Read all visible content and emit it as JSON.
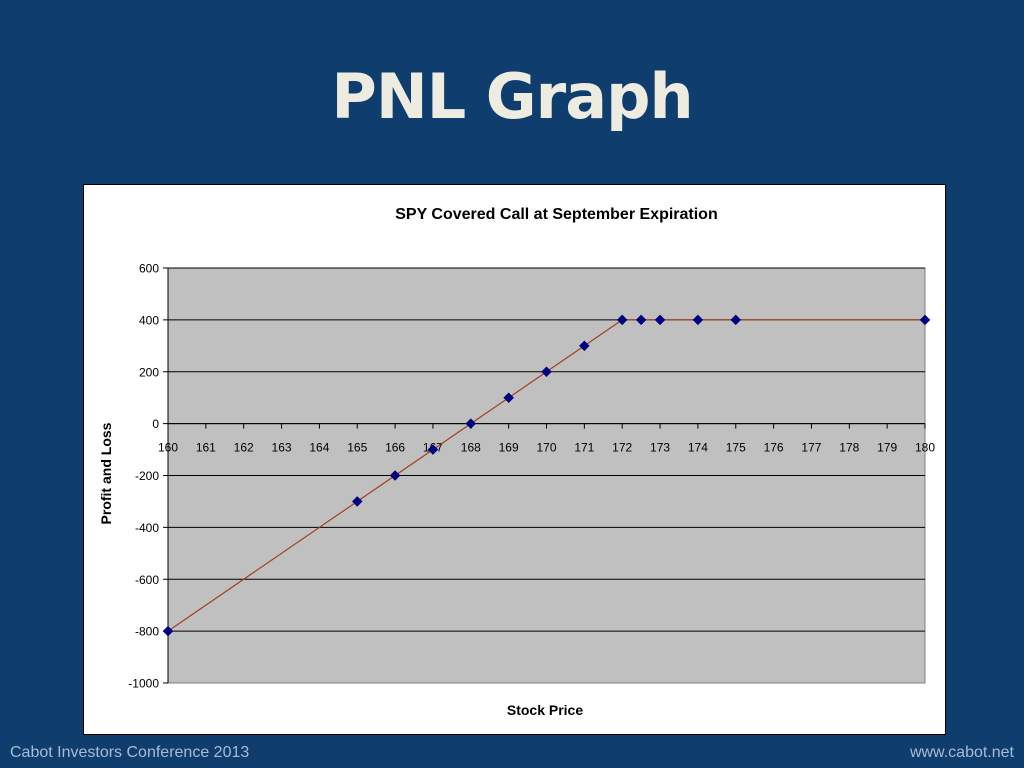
{
  "slide": {
    "title": "PNL Graph",
    "footer_left": "Cabot Investors Conference 2013",
    "footer_right": "www.cabot.net"
  },
  "colors": {
    "background": "#0f3d6e",
    "title": "#eeece1",
    "plot_area": "#c0c0c0",
    "line": "#a0401c",
    "marker": "#000080",
    "footer_text": "#a9bcd4"
  },
  "chart_data": {
    "type": "line",
    "title": "SPY Covered Call at September Expiration",
    "xlabel": "Stock Price",
    "ylabel": "Profit and Loss",
    "xlim": [
      160,
      180
    ],
    "ylim": [
      -1000,
      600
    ],
    "xticks": [
      160,
      161,
      162,
      163,
      164,
      165,
      166,
      167,
      168,
      169,
      170,
      171,
      172,
      173,
      174,
      175,
      176,
      177,
      178,
      179,
      180
    ],
    "yticks": [
      600,
      400,
      200,
      0,
      -200,
      -400,
      -600,
      -800,
      -1000
    ],
    "grid": "horizontal",
    "legend": "none",
    "series": [
      {
        "x": [
          160,
          165,
          166,
          167,
          168,
          169,
          170,
          171,
          172,
          172.5,
          173,
          174,
          175,
          180
        ],
        "y": [
          -800,
          -300,
          -200,
          -100,
          0,
          100,
          200,
          300,
          400,
          400,
          400,
          400,
          400,
          400
        ]
      }
    ]
  }
}
